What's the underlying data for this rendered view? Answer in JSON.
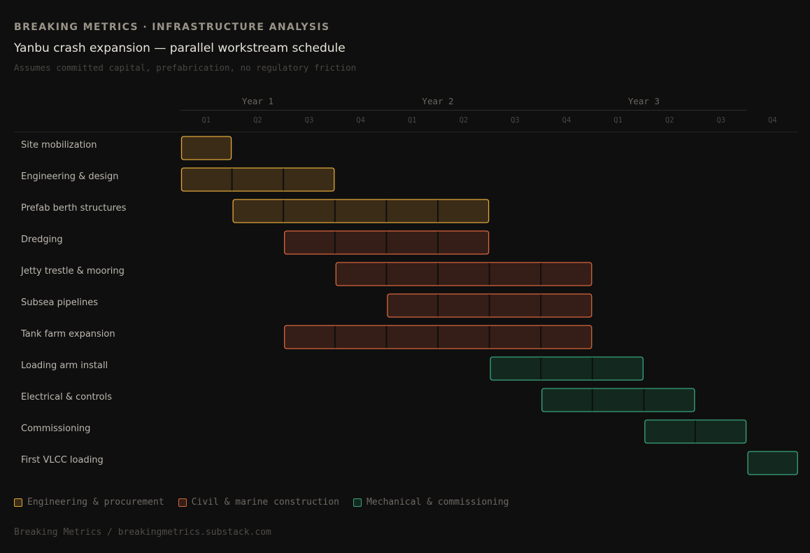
{
  "header": {
    "kicker": "BREAKING METRICS · INFRASTRUCTURE ANALYSIS",
    "title": "Yanbu crash expansion — parallel workstream schedule",
    "subtitle": "Assumes committed capital, prefabrication, no regulatory friction"
  },
  "chart_data": {
    "type": "gantt",
    "years": [
      "Year 1",
      "Year 2",
      "Year 3"
    ],
    "quarters": [
      "Q1",
      "Q2",
      "Q3",
      "Q4",
      "Q1",
      "Q2",
      "Q3",
      "Q4",
      "Q1",
      "Q2",
      "Q3",
      "Q4"
    ],
    "categories": {
      "eng": {
        "name": "Engineering & procurement",
        "fill": "#3b2c17",
        "stroke": "#e0a83a"
      },
      "civil": {
        "name": "Civil & marine construction",
        "fill": "#351e17",
        "stroke": "#d9663f"
      },
      "mech": {
        "name": "Mechanical & commissioning",
        "fill": "#13291f",
        "stroke": "#3aa57e"
      }
    },
    "tasks": [
      {
        "name": "Site mobilization",
        "start": "Y1 Q1",
        "end": "Y1 Q1",
        "start_q": 1,
        "end_q": 1,
        "category": "eng"
      },
      {
        "name": "Engineering & design",
        "start": "Y1 Q1",
        "end": "Y1 Q3",
        "start_q": 1,
        "end_q": 3,
        "category": "eng"
      },
      {
        "name": "Prefab berth structures",
        "start": "Y1 Q2",
        "end": "Y2 Q2",
        "start_q": 2,
        "end_q": 6,
        "category": "eng"
      },
      {
        "name": "Dredging",
        "start": "Y1 Q3",
        "end": "Y2 Q2",
        "start_q": 3,
        "end_q": 6,
        "category": "civil"
      },
      {
        "name": "Jetty trestle & mooring",
        "start": "Y1 Q4",
        "end": "Y2 Q4",
        "start_q": 4,
        "end_q": 8,
        "category": "civil"
      },
      {
        "name": "Subsea pipelines",
        "start": "Y2 Q1",
        "end": "Y2 Q4",
        "start_q": 5,
        "end_q": 8,
        "category": "civil"
      },
      {
        "name": "Tank farm expansion",
        "start": "Y1 Q3",
        "end": "Y2 Q4",
        "start_q": 3,
        "end_q": 8,
        "category": "civil"
      },
      {
        "name": "Loading arm install",
        "start": "Y2 Q3",
        "end": "Y3 Q1",
        "start_q": 7,
        "end_q": 9,
        "category": "mech"
      },
      {
        "name": "Electrical & controls",
        "start": "Y2 Q4",
        "end": "Y3 Q2",
        "start_q": 8,
        "end_q": 10,
        "category": "mech"
      },
      {
        "name": "Commissioning",
        "start": "Y3 Q2",
        "end": "Y3 Q3",
        "start_q": 10,
        "end_q": 11,
        "category": "mech"
      },
      {
        "name": "First VLCC loading",
        "start": "Y3 Q4",
        "end": "Y3 Q4",
        "start_q": 12,
        "end_q": 12,
        "category": "mech"
      }
    ],
    "legend_placement": "bottom-left"
  },
  "footer": "Breaking Metrics / breakingmetrics.substack.com"
}
